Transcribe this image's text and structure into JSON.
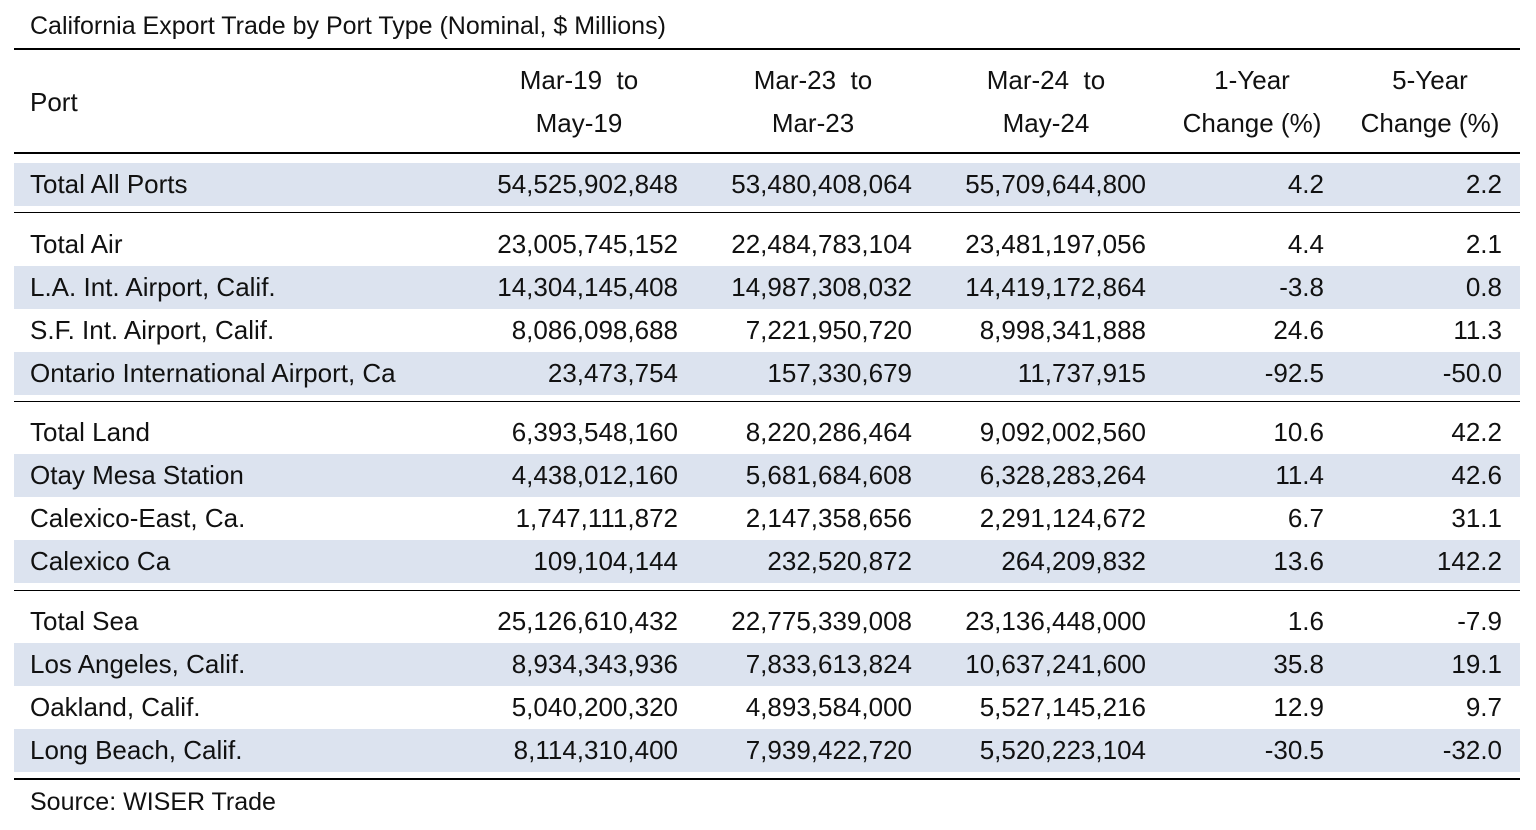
{
  "title": "California Export Trade by Port Type (Nominal, $ Millions)",
  "columns": {
    "port": "Port",
    "p1_line1": "Mar-19  to",
    "p1_line2": "May-19",
    "p2_line1": "Mar-23  to",
    "p2_line2": "Mar-23",
    "p3_line1": "Mar-24  to",
    "p3_line2": "May-24",
    "c1_line1": "1-Year",
    "c1_line2": "Change (%)",
    "c5_line1": "5-Year",
    "c5_line2": "Change (%)"
  },
  "rows": [
    {
      "port": "Total All Ports",
      "v1": "54,525,902,848",
      "v2": "53,480,408,064",
      "v3": "55,709,644,800",
      "chg1": "4.2",
      "chg5": "2.2"
    },
    {
      "port": "Total Air",
      "v1": "23,005,745,152",
      "v2": "22,484,783,104",
      "v3": "23,481,197,056",
      "chg1": "4.4",
      "chg5": "2.1"
    },
    {
      "port": "L.A. Int. Airport, Calif.",
      "v1": "14,304,145,408",
      "v2": "14,987,308,032",
      "v3": "14,419,172,864",
      "chg1": "-3.8",
      "chg5": "0.8"
    },
    {
      "port": "S.F. Int. Airport, Calif.",
      "v1": "8,086,098,688",
      "v2": "7,221,950,720",
      "v3": "8,998,341,888",
      "chg1": "24.6",
      "chg5": "11.3"
    },
    {
      "port": "Ontario International Airport, Ca",
      "v1": "23,473,754",
      "v2": "157,330,679",
      "v3": "11,737,915",
      "chg1": "-92.5",
      "chg5": "-50.0"
    },
    {
      "port": "Total Land",
      "v1": "6,393,548,160",
      "v2": "8,220,286,464",
      "v3": "9,092,002,560",
      "chg1": "10.6",
      "chg5": "42.2"
    },
    {
      "port": "Otay Mesa Station",
      "v1": "4,438,012,160",
      "v2": "5,681,684,608",
      "v3": "6,328,283,264",
      "chg1": "11.4",
      "chg5": "42.6"
    },
    {
      "port": "Calexico-East, Ca.",
      "v1": "1,747,111,872",
      "v2": "2,147,358,656",
      "v3": "2,291,124,672",
      "chg1": "6.7",
      "chg5": "31.1"
    },
    {
      "port": "Calexico Ca",
      "v1": "109,104,144",
      "v2": "232,520,872",
      "v3": "264,209,832",
      "chg1": "13.6",
      "chg5": "142.2"
    },
    {
      "port": "Total Sea",
      "v1": "25,126,610,432",
      "v2": "22,775,339,008",
      "v3": "23,136,448,000",
      "chg1": "1.6",
      "chg5": "-7.9"
    },
    {
      "port": "Los Angeles, Calif.",
      "v1": "8,934,343,936",
      "v2": "7,833,613,824",
      "v3": "10,637,241,600",
      "chg1": "35.8",
      "chg5": "19.1"
    },
    {
      "port": "Oakland, Calif.",
      "v1": "5,040,200,320",
      "v2": "4,893,584,000",
      "v3": "5,527,145,216",
      "chg1": "12.9",
      "chg5": "9.7"
    },
    {
      "port": "Long Beach, Calif.",
      "v1": "8,114,310,400",
      "v2": "7,939,422,720",
      "v3": "5,520,223,104",
      "chg1": "-30.5",
      "chg5": "-32.0"
    }
  ],
  "source": "Source: WISER Trade"
}
